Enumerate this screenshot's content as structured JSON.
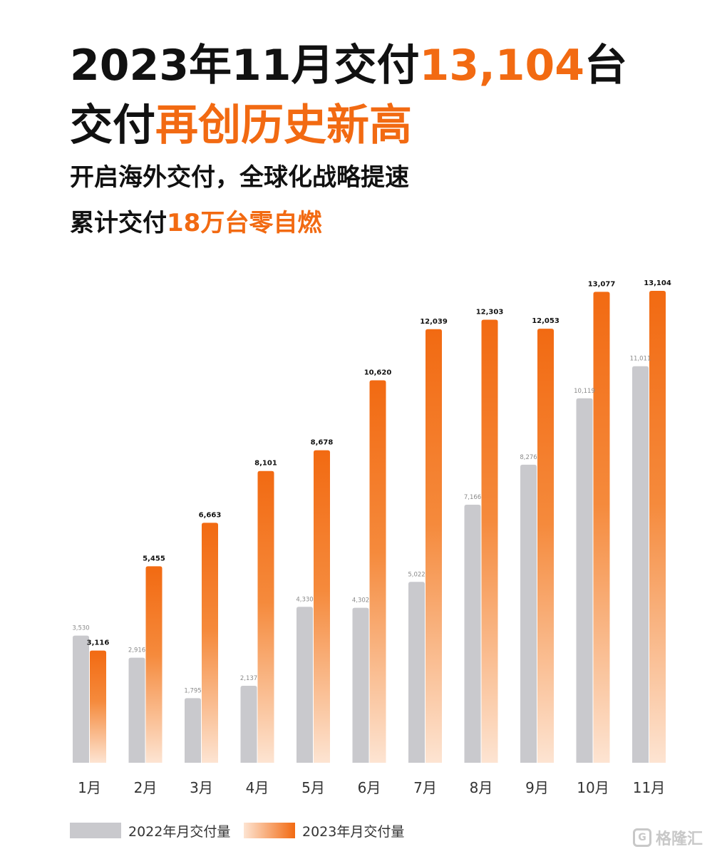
{
  "headline": {
    "line1_prefix": "2023年11月交付",
    "line1_highlight": "13,104",
    "line1_suffix": "台",
    "line2_prefix": "交付",
    "line2_highlight": "再创历史新高",
    "line3": "开启海外交付，全球化战略提速",
    "line4_prefix": "累计交付",
    "line4_highlight": "18万台零自燃"
  },
  "colors": {
    "accent": "#f26a12",
    "accent_light": "#fde4d2",
    "series_2022": "#c9c9cd"
  },
  "chart_data": {
    "type": "bar",
    "categories": [
      "1月",
      "2月",
      "3月",
      "4月",
      "5月",
      "6月",
      "7月",
      "8月",
      "9月",
      "10月",
      "11月"
    ],
    "series": [
      {
        "name": "2022年月交付量",
        "values": [
          3530,
          2916,
          1795,
          2137,
          4330,
          4302,
          5022,
          7166,
          8276,
          10119,
          11011
        ],
        "labels": [
          "3,530",
          "2,916",
          "1,795",
          "2,137",
          "4,330",
          "4,302",
          "5,022",
          "7,166",
          "8,276",
          "10,119",
          "11,011"
        ]
      },
      {
        "name": "2023年月交付量",
        "values": [
          3116,
          5455,
          6663,
          8101,
          8678,
          10620,
          12039,
          12303,
          12053,
          13077,
          13104
        ],
        "labels": [
          "3,116",
          "5,455",
          "6,663",
          "8,101",
          "8,678",
          "10,620",
          "12,039",
          "12,303",
          "12,053",
          "13,077",
          "13,104"
        ]
      }
    ],
    "ylim": [
      0,
      13104
    ],
    "grid": false,
    "legend": "bottom-left"
  },
  "watermark": {
    "icon": "gelonghui-logo-icon",
    "text": "格隆汇"
  }
}
